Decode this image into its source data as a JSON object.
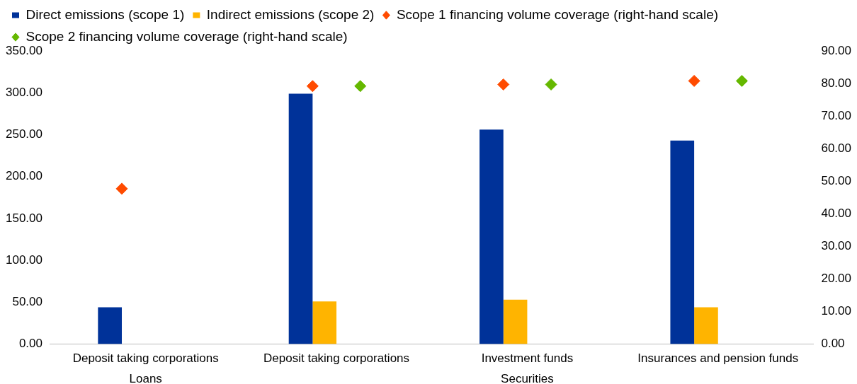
{
  "chart_data": {
    "type": "bar",
    "categories": [
      "Deposit taking corporations",
      "Deposit taking corporations",
      "Investment funds",
      "Insurances and pension funds"
    ],
    "series": [
      {
        "name": "Direct emissions (scope 1)",
        "color": "#003299",
        "values": [
          44,
          299,
          256,
          243
        ]
      },
      {
        "name": "Indirect emissions (scope 2)",
        "color": "#ffb400",
        "values": [
          null,
          51,
          53,
          44
        ]
      },
      {
        "name": "Scope 1 financing volume coverage (right-hand scale)",
        "type": "scatter",
        "axis": "y2",
        "color": "#ff4b00",
        "values": [
          47.7,
          79.2,
          79.7,
          80.8
        ]
      },
      {
        "name": "Scope 2 financing volume coverage (right-hand scale)",
        "type": "scatter",
        "axis": "y2",
        "color": "#65b800",
        "values": [
          null,
          79.2,
          79.7,
          80.8
        ]
      }
    ],
    "ylim": [
      0,
      350
    ],
    "yticks": [
      {
        "value": 0,
        "label": "0.00"
      },
      {
        "value": 50,
        "label": "50.00"
      },
      {
        "value": 100,
        "label": "100.00"
      },
      {
        "value": 150,
        "label": "150.00"
      },
      {
        "value": 200,
        "label": "200.00"
      },
      {
        "value": 250,
        "label": "250.00"
      },
      {
        "value": 300,
        "label": "300.00"
      },
      {
        "value": 350,
        "label": "350.00"
      }
    ],
    "y2lim": [
      0,
      90
    ],
    "y2ticks": [
      {
        "value": 0,
        "label": "0.00"
      },
      {
        "value": 10,
        "label": "10.00"
      },
      {
        "value": 20,
        "label": "20.00"
      },
      {
        "value": 30,
        "label": "30.00"
      },
      {
        "value": 40,
        "label": "40.00"
      },
      {
        "value": 50,
        "label": "50.00"
      },
      {
        "value": 60,
        "label": "60.00"
      },
      {
        "value": 70,
        "label": "70.00"
      },
      {
        "value": 80,
        "label": "80.00"
      },
      {
        "value": 90,
        "label": "90.00"
      }
    ],
    "annotations": [
      "Loans",
      "Securities"
    ],
    "grid": false,
    "legend": "top",
    "marker": "diamond"
  }
}
